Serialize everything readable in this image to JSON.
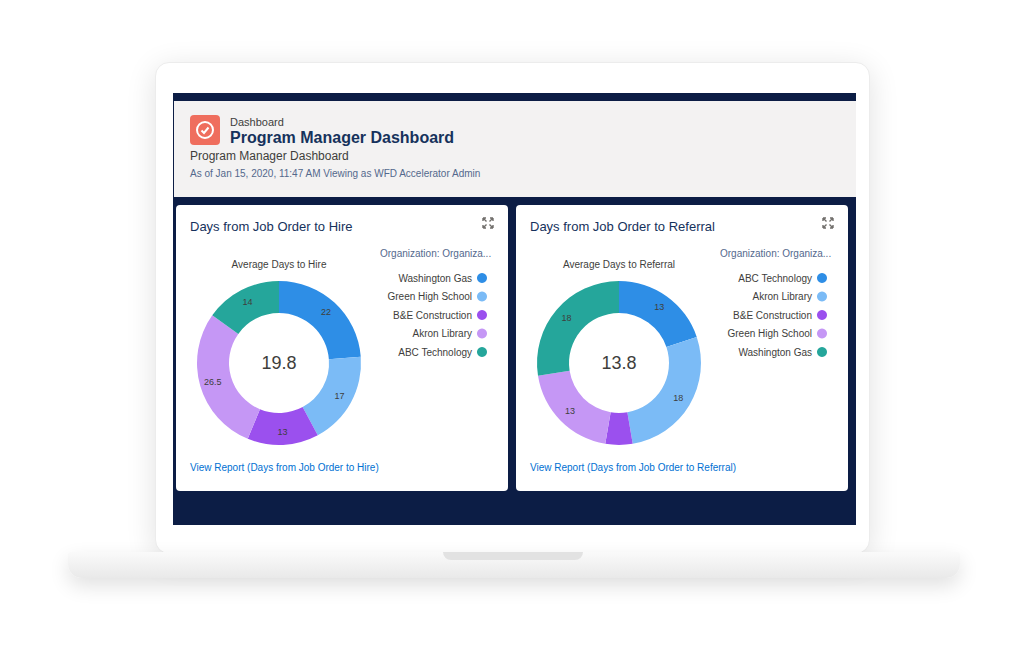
{
  "header": {
    "kicker": "Dashboard",
    "title": "Program Manager Dashboard",
    "subtitle": "Program Manager Dashboard",
    "status": "As of Jan 15, 2020, 11:47 AM Viewing as WFD Accelerator Admin"
  },
  "chart_data": [
    {
      "type": "pie",
      "title": "Days from Job Order to Hire",
      "subtitle": "Average Days to Hire",
      "legend_title": "Organization: Organiza...",
      "center_value": 19.8,
      "categories": [
        "Washington Gas",
        "Green High School",
        "B&E Construction",
        "Akron Library",
        "ABC Technology"
      ],
      "values": [
        22,
        17,
        13,
        26.5,
        14
      ],
      "colors": [
        "#2e8ee6",
        "#7bbbf6",
        "#9b50ee",
        "#c597f5",
        "#25a69b"
      ],
      "data_labels": true,
      "legend": "right",
      "link": "View Report (Days from Job Order to Hire)"
    },
    {
      "type": "pie",
      "title": "Days from Job Order to Referral",
      "subtitle": "Average Days to Referral",
      "legend_title": "Organization: Organiza...",
      "center_value": 13.8,
      "categories": [
        "ABC Technology",
        "Akron Library",
        "B&E Construction",
        "Green High School",
        "Washington Gas"
      ],
      "values": [
        13,
        18,
        3.5,
        13,
        18
      ],
      "value_labels": [
        "13",
        "18",
        null,
        "13",
        "18"
      ],
      "colors": [
        "#2e8ee6",
        "#7bbbf6",
        "#9b50ee",
        "#c597f5",
        "#25a69b"
      ],
      "data_labels": true,
      "legend": "right",
      "link": "View Report (Days from Job Order to Referral)"
    }
  ]
}
